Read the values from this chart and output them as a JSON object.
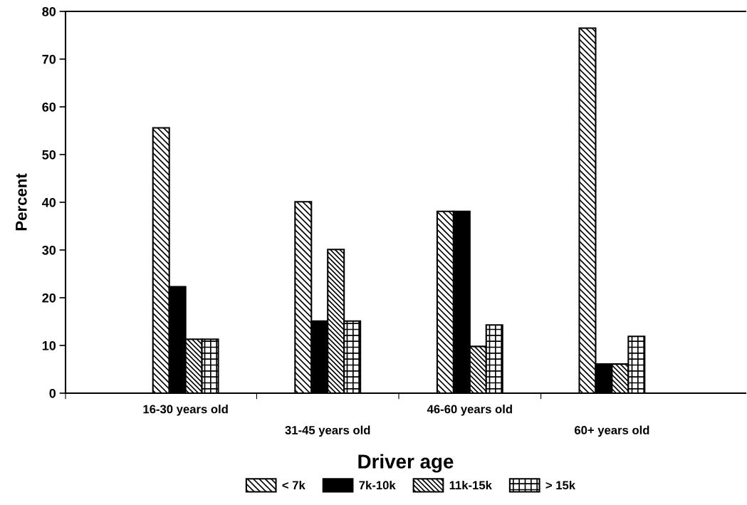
{
  "chart_data": {
    "type": "bar",
    "xlabel": "Driver age",
    "ylabel": "Percent",
    "categories": [
      "16-30 years old",
      "31-45 years old",
      "46-60 years old",
      "60+ years old"
    ],
    "series": [
      {
        "name": "< 7k",
        "color": "#000000",
        "values": [
          55.6,
          40.1,
          38.1,
          76.5
        ]
      },
      {
        "name": "7k-10k",
        "color": "#000000",
        "values": [
          22.3,
          15.1,
          38.1,
          6.1
        ]
      },
      {
        "name": "11k-15k",
        "color": "#000000",
        "values": [
          11.3,
          30.1,
          9.8,
          6.1
        ]
      },
      {
        "name": "> 15k",
        "color": "#000000",
        "values": [
          11.3,
          15.1,
          14.3,
          11.9
        ]
      }
    ],
    "ylim": [
      0,
      80
    ],
    "yticks": [
      0,
      10,
      20,
      30,
      40,
      50,
      60,
      70,
      80
    ],
    "grid": false,
    "legend": "bottom"
  }
}
